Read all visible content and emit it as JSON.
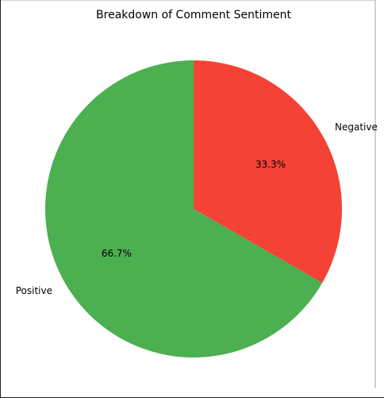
{
  "chart_data": {
    "type": "pie",
    "title": "Breakdown of Comment Sentiment",
    "slices": [
      {
        "label": "Negative",
        "value": 33.3,
        "pct_label": "33.3%",
        "color": "#f44336"
      },
      {
        "label": "Positive",
        "value": 66.7,
        "pct_label": "66.7%",
        "color": "#4caf50"
      }
    ],
    "start_angle_deg": 90,
    "direction": "clockwise",
    "legend": "none"
  }
}
